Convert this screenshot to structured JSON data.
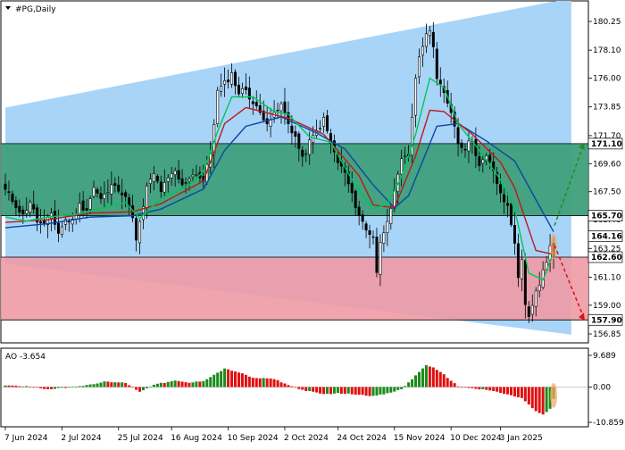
{
  "header": {
    "symbol_label": "#PG,Daily"
  },
  "indicator": {
    "label": "AO -3.654"
  },
  "colors": {
    "candle_up": "#ffffff",
    "candle_down": "#000000",
    "channel_fill": "#a8d4f8",
    "resistance_zone": "#3f9f7b",
    "support_zone": "#ee9aa5",
    "ma_fast": "#00c853",
    "ma_mid": "#b71c1c",
    "ma_slow": "#0d47a1",
    "ao_up": "#1b8a1b",
    "ao_down": "#e01010",
    "arrow_up": "#1e8e1e",
    "arrow_down": "#e01010",
    "highlight": "#f4a460"
  },
  "chart_data": [
    {
      "type": "candlestick",
      "title": "#PG,Daily",
      "y_ticks": [
        "180.25",
        "178.10",
        "176.00",
        "173.85",
        "171.70",
        "169.60",
        "167.50",
        "165.40",
        "163.25",
        "161.10",
        "159.00",
        "156.85"
      ],
      "ylim": [
        156.85,
        181.1
      ],
      "x_ticks": [
        "7 Jun 2024",
        "2 Jul 2024",
        "25 Jul 2024",
        "16 Aug 2024",
        "10 Sep 2024",
        "2 Oct 2024",
        "24 Oct 2024",
        "15 Nov 2024",
        "10 Dec 2024",
        "3 Jan 2025"
      ],
      "levels": [
        {
          "label": "171.10",
          "value": 171.1
        },
        {
          "label": "165.70",
          "value": 165.7
        },
        {
          "label": "164.16",
          "value": 164.16
        },
        {
          "label": "162.60",
          "value": 162.6
        },
        {
          "label": "157.90",
          "value": 157.9
        }
      ],
      "zones": [
        {
          "name": "resistance",
          "from": 165.7,
          "to": 171.1
        },
        {
          "name": "support",
          "from": 157.9,
          "to": 162.6
        }
      ],
      "channel": {
        "upper": [
          [
            0,
            173.8
          ],
          [
            160,
            182.0
          ]
        ],
        "lower": [
          [
            0,
            162.1
          ],
          [
            160,
            156.8
          ]
        ]
      },
      "close_anchors": [
        [
          0,
          167.6
        ],
        [
          3,
          166.5
        ],
        [
          5,
          165.7
        ],
        [
          7,
          166.8
        ],
        [
          9,
          165.3
        ],
        [
          11,
          164.9
        ],
        [
          13,
          165.9
        ],
        [
          15,
          164.4
        ],
        [
          17,
          165.4
        ],
        [
          19,
          165.3
        ],
        [
          21,
          166.5
        ],
        [
          23,
          166.2
        ],
        [
          25,
          167.8
        ],
        [
          27,
          166.9
        ],
        [
          29,
          167.5
        ],
        [
          31,
          168.2
        ],
        [
          33,
          167.3
        ],
        [
          35,
          166.6
        ],
        [
          36,
          165.4
        ],
        [
          37,
          163.8
        ],
        [
          38,
          165.1
        ],
        [
          40,
          167.8
        ],
        [
          42,
          168.8
        ],
        [
          44,
          167.6
        ],
        [
          46,
          168.4
        ],
        [
          48,
          169.0
        ],
        [
          50,
          167.9
        ],
        [
          52,
          168.6
        ],
        [
          54,
          168.9
        ],
        [
          56,
          168.3
        ],
        [
          58,
          170.4
        ],
        [
          60,
          175.0
        ],
        [
          62,
          175.6
        ],
        [
          64,
          176.3
        ],
        [
          66,
          174.9
        ],
        [
          68,
          175.2
        ],
        [
          70,
          174.1
        ],
        [
          72,
          173.4
        ],
        [
          74,
          172.8
        ],
        [
          76,
          173.2
        ],
        [
          78,
          174.0
        ],
        [
          80,
          172.6
        ],
        [
          82,
          171.6
        ],
        [
          84,
          169.9
        ],
        [
          86,
          171.2
        ],
        [
          88,
          172.0
        ],
        [
          90,
          172.9
        ],
        [
          92,
          171.1
        ],
        [
          94,
          169.7
        ],
        [
          96,
          168.9
        ],
        [
          98,
          167.2
        ],
        [
          100,
          165.8
        ],
        [
          102,
          164.6
        ],
        [
          104,
          164.2
        ],
        [
          105,
          161.5
        ],
        [
          106,
          163.6
        ],
        [
          108,
          165.5
        ],
        [
          110,
          167.4
        ],
        [
          112,
          169.8
        ],
        [
          114,
          170.2
        ],
        [
          116,
          176.1
        ],
        [
          118,
          178.6
        ],
        [
          120,
          179.8
        ],
        [
          121,
          178.4
        ],
        [
          122,
          175.9
        ],
        [
          124,
          174.8
        ],
        [
          126,
          173.6
        ],
        [
          128,
          171.2
        ],
        [
          130,
          170.8
        ],
        [
          132,
          171.4
        ],
        [
          134,
          169.4
        ],
        [
          136,
          170.1
        ],
        [
          138,
          169.1
        ],
        [
          140,
          167.2
        ],
        [
          142,
          166.4
        ],
        [
          144,
          163.8
        ],
        [
          145,
          160.9
        ],
        [
          146,
          162.4
        ],
        [
          147,
          159.2
        ],
        [
          148,
          158.2
        ],
        [
          149,
          158.8
        ],
        [
          150,
          159.9
        ],
        [
          151,
          160.4
        ],
        [
          152,
          161.5
        ],
        [
          153,
          162.2
        ],
        [
          154,
          163.6
        ],
        [
          155,
          162.5
        ]
      ],
      "ma_fast_anchors": [
        [
          0,
          165.6
        ],
        [
          6,
          165.3
        ],
        [
          12,
          165.6
        ],
        [
          20,
          165.8
        ],
        [
          28,
          166.3
        ],
        [
          34,
          166.7
        ],
        [
          38,
          165.5
        ],
        [
          44,
          167.0
        ],
        [
          52,
          168.0
        ],
        [
          56,
          169.0
        ],
        [
          60,
          172.0
        ],
        [
          64,
          174.6
        ],
        [
          70,
          174.6
        ],
        [
          76,
          173.5
        ],
        [
          80,
          173.3
        ],
        [
          86,
          171.6
        ],
        [
          92,
          171.2
        ],
        [
          98,
          168.4
        ],
        [
          104,
          166.2
        ],
        [
          108,
          166.6
        ],
        [
          112,
          168.6
        ],
        [
          116,
          171.8
        ],
        [
          120,
          176.0
        ],
        [
          124,
          175.3
        ],
        [
          128,
          172.6
        ],
        [
          134,
          170.6
        ],
        [
          140,
          168.4
        ],
        [
          144,
          166.2
        ],
        [
          148,
          161.4
        ],
        [
          152,
          160.9
        ],
        [
          155,
          163.0
        ]
      ],
      "ma_mid_anchors": [
        [
          0,
          165.2
        ],
        [
          12,
          165.4
        ],
        [
          24,
          165.9
        ],
        [
          36,
          166.0
        ],
        [
          44,
          166.6
        ],
        [
          56,
          168.3
        ],
        [
          62,
          172.6
        ],
        [
          68,
          173.8
        ],
        [
          80,
          173.0
        ],
        [
          90,
          171.8
        ],
        [
          100,
          168.7
        ],
        [
          104,
          166.5
        ],
        [
          110,
          166.3
        ],
        [
          116,
          170.2
        ],
        [
          120,
          173.6
        ],
        [
          124,
          173.5
        ],
        [
          132,
          171.8
        ],
        [
          140,
          169.7
        ],
        [
          144,
          167.8
        ],
        [
          150,
          163.1
        ],
        [
          155,
          162.8
        ]
      ],
      "ma_slow_anchors": [
        [
          0,
          164.8
        ],
        [
          12,
          165.1
        ],
        [
          24,
          165.6
        ],
        [
          36,
          165.7
        ],
        [
          44,
          166.2
        ],
        [
          56,
          167.7
        ],
        [
          62,
          170.6
        ],
        [
          68,
          172.4
        ],
        [
          78,
          173.1
        ],
        [
          88,
          171.9
        ],
        [
          96,
          170.7
        ],
        [
          104,
          168.0
        ],
        [
          110,
          166.3
        ],
        [
          114,
          167.2
        ],
        [
          118,
          169.8
        ],
        [
          122,
          172.4
        ],
        [
          128,
          172.6
        ],
        [
          136,
          171.3
        ],
        [
          144,
          169.8
        ],
        [
          150,
          166.9
        ],
        [
          155,
          164.5
        ]
      ],
      "ao": {
        "label": "AO -3.654",
        "y_ticks": [
          "9.689",
          "0.00",
          "-10.859"
        ],
        "ylim": [
          -10.859,
          9.689
        ],
        "anchors": [
          [
            0,
            0.6
          ],
          [
            8,
            0.1
          ],
          [
            12,
            -0.7
          ],
          [
            16,
            -0.3
          ],
          [
            22,
            0.4
          ],
          [
            28,
            1.6
          ],
          [
            34,
            1.3
          ],
          [
            38,
            -1.5
          ],
          [
            42,
            0.8
          ],
          [
            48,
            1.9
          ],
          [
            52,
            1.3
          ],
          [
            56,
            1.9
          ],
          [
            62,
            5.6
          ],
          [
            66,
            4.5
          ],
          [
            70,
            2.8
          ],
          [
            76,
            2.5
          ],
          [
            80,
            0.6
          ],
          [
            84,
            -0.9
          ],
          [
            90,
            -2.2
          ],
          [
            94,
            -1.9
          ],
          [
            100,
            -2.3
          ],
          [
            104,
            -2.8
          ],
          [
            108,
            -2.0
          ],
          [
            112,
            -0.7
          ],
          [
            116,
            3.5
          ],
          [
            119,
            6.8
          ],
          [
            121,
            5.9
          ],
          [
            124,
            3.8
          ],
          [
            128,
            0.2
          ],
          [
            132,
            -0.4
          ],
          [
            138,
            -1.2
          ],
          [
            140,
            -1.8
          ],
          [
            146,
            -3.4
          ],
          [
            150,
            -7.5
          ],
          [
            152,
            -8.5
          ],
          [
            154,
            -6.8
          ],
          [
            155,
            -3.654
          ]
        ]
      }
    }
  ]
}
